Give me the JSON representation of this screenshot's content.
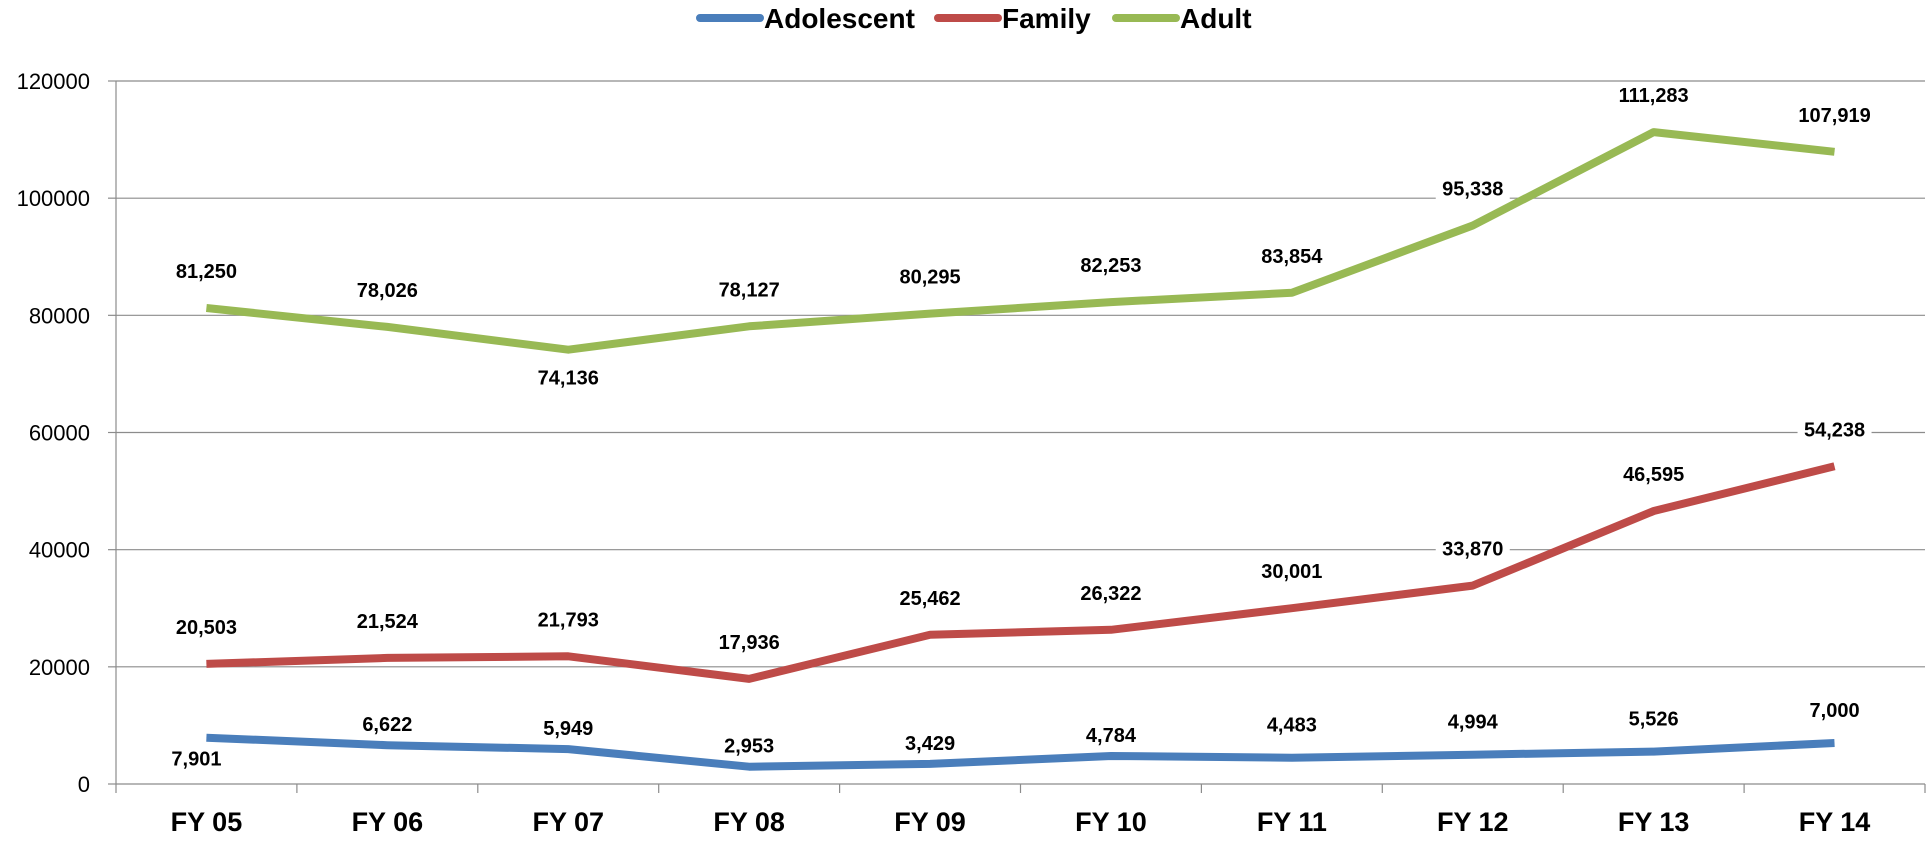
{
  "chart_data": {
    "type": "line",
    "title": "",
    "xlabel": "",
    "ylabel": "",
    "categories": [
      "FY 05",
      "FY 06",
      "FY 07",
      "FY 08",
      "FY 09",
      "FY 10",
      "FY 11",
      "FY 12",
      "FY 13",
      "FY 14"
    ],
    "ylim": [
      0,
      120000
    ],
    "yticks": [
      "0",
      "20000",
      "40000",
      "60000",
      "80000",
      "100000",
      "120000"
    ],
    "grid": true,
    "legend_position": "top-center",
    "series": [
      {
        "name": "Adolescent",
        "color": "#4a7ebb",
        "values": [
          7901,
          6622,
          5949,
          2953,
          3429,
          4784,
          4483,
          4994,
          5526,
          7000
        ],
        "labels": [
          "7,901",
          "6,622",
          "5,949",
          "2,953",
          "3,429",
          "4,784",
          "4,483",
          "4,994",
          "5,526",
          "7,000"
        ]
      },
      {
        "name": "Family",
        "color": "#be4b48",
        "values": [
          20503,
          21524,
          21793,
          17936,
          25462,
          26322,
          30001,
          33870,
          46595,
          54238
        ],
        "labels": [
          "20,503",
          "21,524",
          "21,793",
          "17,936",
          "25,462",
          "26,322",
          "30,001",
          "33,870",
          "46,595",
          "54,238"
        ]
      },
      {
        "name": "Adult",
        "color": "#98b954",
        "values": [
          81250,
          78026,
          74136,
          78127,
          80295,
          82253,
          83854,
          95338,
          111283,
          107919
        ],
        "labels": [
          "81,250",
          "78,026",
          "74,136",
          "78,127",
          "80,295",
          "82,253",
          "83,854",
          "95,338",
          "111,283",
          "107,919"
        ]
      }
    ]
  }
}
